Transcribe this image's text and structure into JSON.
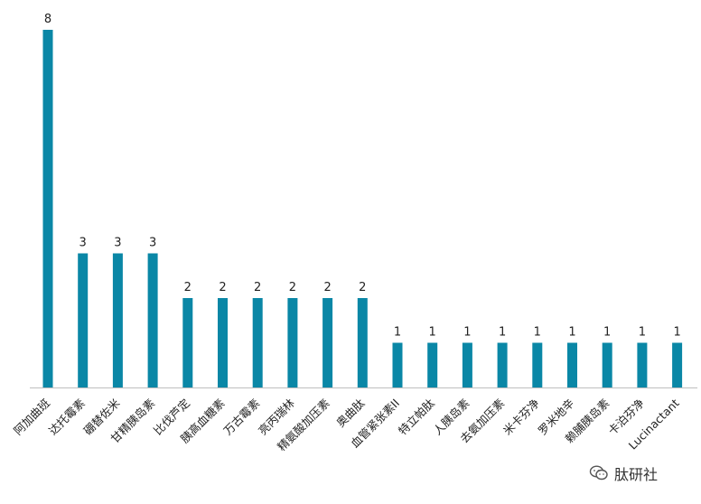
{
  "chart_data": {
    "type": "bar",
    "categories": [
      "阿加曲班",
      "达托霉素",
      "硼替佐米",
      "甘精胰岛素",
      "比伐芦定",
      "胰高血糖素",
      "万古霉素",
      "亮丙瑞林",
      "精氨酸加压素",
      "奥曲肽",
      "血管紧张素II",
      "特立帕肽",
      "人胰岛素",
      "去氨加压素",
      "米卡芬净",
      "罗米地辛",
      "赖脯胰岛素",
      "卡泊芬净",
      "Lucinactant"
    ],
    "values": [
      8,
      3,
      3,
      3,
      2,
      2,
      2,
      2,
      2,
      2,
      1,
      1,
      1,
      1,
      1,
      1,
      1,
      1,
      1
    ],
    "data_labels": [
      "8",
      "3",
      "3",
      "3",
      "2",
      "2",
      "2",
      "2",
      "2",
      "2",
      "1",
      "1",
      "1",
      "1",
      "1",
      "1",
      "1",
      "1",
      "1"
    ],
    "ylim": [
      0,
      8
    ],
    "grid": false,
    "bar_color": "#0a87a6",
    "axis_color": "#bfbfbf"
  },
  "watermark": {
    "text": "肽研社",
    "icon": "wechat-icon"
  }
}
